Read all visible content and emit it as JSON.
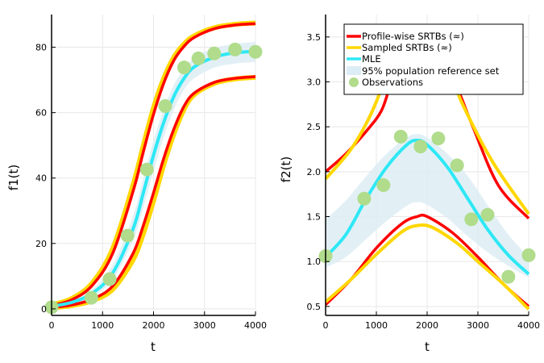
{
  "chart_data": [
    {
      "type": "line",
      "id": "left",
      "xlabel": "t",
      "ylabel": "f1(t)",
      "xlim": [
        0,
        4000
      ],
      "ylim": [
        -2,
        90
      ],
      "xticks": [
        0,
        1000,
        2000,
        3000,
        4000
      ],
      "xtick_labels": [
        "0",
        "1000",
        "2000",
        "3000",
        "4000"
      ],
      "yticks": [
        0,
        20,
        40,
        60,
        80
      ],
      "ytick_labels": [
        "0",
        "20",
        "40",
        "60",
        "80"
      ],
      "grid": true,
      "series": [
        {
          "name": "95% population reference set",
          "kind": "band",
          "x": [
            0,
            400,
            800,
            1200,
            1600,
            1800,
            2000,
            2200,
            2400,
            2600,
            2800,
            3200,
            3600,
            4000
          ],
          "lower": [
            0.6,
            1.5,
            3.8,
            9.0,
            21.0,
            31.0,
            42.0,
            52.5,
            61.0,
            67.0,
            70.5,
            73.8,
            75.0,
            75.5
          ],
          "upper": [
            1.2,
            2.6,
            6.0,
            13.5,
            28.5,
            40.0,
            51.5,
            61.0,
            68.5,
            73.5,
            76.8,
            79.8,
            81.0,
            81.6
          ]
        },
        {
          "name": "Sampled SRTBs (≈) upper",
          "kind": "line",
          "x": [
            0,
            400,
            800,
            1200,
            1600,
            1800,
            2000,
            2200,
            2400,
            2600,
            2800,
            3200,
            3600,
            4000
          ],
          "y": [
            1.2,
            3.2,
            8.0,
            18.5,
            38.0,
            50.0,
            61.5,
            70.5,
            77.0,
            81.0,
            83.5,
            86.0,
            87.0,
            87.4
          ]
        },
        {
          "name": "Sampled SRTBs (≈) lower",
          "kind": "line",
          "x": [
            0,
            400,
            800,
            1200,
            1600,
            1800,
            2000,
            2200,
            2400,
            2600,
            2800,
            3200,
            3600,
            4000
          ],
          "y": [
            0.3,
            1.0,
            2.5,
            6.0,
            15.0,
            23.0,
            33.0,
            44.0,
            53.5,
            61.0,
            65.5,
            69.0,
            70.3,
            70.8
          ]
        },
        {
          "name": "Profile-wise SRTBs (≈) upper",
          "kind": "line",
          "x": [
            0,
            400,
            800,
            1200,
            1600,
            1800,
            2000,
            2200,
            2400,
            2600,
            2800,
            3200,
            3600,
            4000
          ],
          "y": [
            1.0,
            2.8,
            7.2,
            17.0,
            36.0,
            48.0,
            59.5,
            69.0,
            76.0,
            80.3,
            83.0,
            85.7,
            86.8,
            87.2
          ]
        },
        {
          "name": "Profile-wise SRTBs (≈) lower",
          "kind": "line",
          "x": [
            0,
            400,
            800,
            1200,
            1600,
            1800,
            2000,
            2200,
            2400,
            2600,
            2800,
            3200,
            3600,
            4000
          ],
          "y": [
            0.4,
            1.2,
            3.0,
            7.0,
            17.0,
            25.5,
            35.5,
            46.0,
            55.0,
            62.0,
            66.0,
            69.3,
            70.5,
            71.0
          ]
        },
        {
          "name": "MLE",
          "kind": "line",
          "x": [
            0,
            400,
            800,
            1200,
            1600,
            1800,
            2000,
            2200,
            2400,
            2600,
            2800,
            3200,
            3600,
            4000
          ],
          "y": [
            0.8,
            2.0,
            4.8,
            11.0,
            24.5,
            35.5,
            47.0,
            57.0,
            65.0,
            70.5,
            74.0,
            77.0,
            78.3,
            78.7
          ]
        },
        {
          "name": "Observations",
          "kind": "scatter",
          "x": [
            0,
            780,
            1140,
            1490,
            1870,
            2230,
            2600,
            2880,
            3190,
            3600,
            4000
          ],
          "y": [
            0.5,
            3.4,
            9.1,
            22.4,
            42.6,
            62.0,
            73.8,
            76.6,
            78.1,
            79.3,
            78.6
          ]
        }
      ]
    },
    {
      "type": "line",
      "id": "right",
      "xlabel": "t",
      "ylabel": "f2(t)",
      "xlim": [
        0,
        4000
      ],
      "ylim": [
        0.4,
        3.75
      ],
      "xticks": [
        0,
        1000,
        2000,
        3000,
        4000
      ],
      "xtick_labels": [
        "0",
        "1000",
        "2000",
        "3000",
        "4000"
      ],
      "yticks": [
        0.5,
        1.0,
        1.5,
        2.0,
        2.5,
        3.0,
        3.5
      ],
      "ytick_labels": [
        "0.5",
        "1.0",
        "1.5",
        "2.0",
        "2.5",
        "3.0",
        "3.5"
      ],
      "grid": true,
      "legend_position": "top-right",
      "series": [
        {
          "name": "95% population reference set",
          "kind": "band",
          "x": [
            0,
            400,
            800,
            1200,
            1600,
            1800,
            2000,
            2400,
            2800,
            3200,
            3600,
            4000
          ],
          "lower": [
            0.93,
            1.05,
            1.25,
            1.45,
            1.62,
            1.66,
            1.63,
            1.48,
            1.28,
            1.1,
            0.95,
            0.82
          ],
          "upper": [
            1.47,
            1.68,
            1.95,
            2.2,
            2.38,
            2.42,
            2.38,
            2.2,
            1.95,
            1.62,
            1.3,
            1.05
          ]
        },
        {
          "name": "Profile-wise SRTBs (≈) upper",
          "kind": "line",
          "x": [
            0,
            400,
            800,
            1100,
            1300,
            1600,
            1800,
            2000,
            2500,
            2900,
            3400,
            4000
          ],
          "y": [
            2.0,
            2.2,
            2.45,
            2.68,
            3.0,
            3.4,
            3.58,
            3.5,
            3.05,
            2.5,
            1.85,
            1.48
          ]
        },
        {
          "name": "Profile-wise SRTBs (≈) lower",
          "kind": "line",
          "x": [
            0,
            500,
            1000,
            1500,
            1800,
            2000,
            2500,
            3000,
            3500,
            4000
          ],
          "y": [
            0.52,
            0.8,
            1.15,
            1.42,
            1.5,
            1.5,
            1.32,
            1.05,
            0.75,
            0.5
          ]
        },
        {
          "name": "Sampled SRTBs (≈) upper",
          "kind": "line",
          "x": [
            0,
            500,
            900,
            1300,
            1600,
            1800,
            2000,
            2300,
            2700,
            3300,
            4000
          ],
          "y": [
            1.92,
            2.25,
            2.65,
            3.2,
            3.5,
            3.62,
            3.55,
            3.3,
            2.75,
            2.1,
            1.53
          ]
        },
        {
          "name": "Sampled SRTBs (≈) lower",
          "kind": "line",
          "x": [
            0,
            500,
            1000,
            1500,
            1800,
            2100,
            2600,
            3000,
            3500,
            4000
          ],
          "y": [
            0.55,
            0.8,
            1.08,
            1.33,
            1.4,
            1.38,
            1.2,
            1.0,
            0.75,
            0.47
          ]
        },
        {
          "name": "MLE",
          "kind": "line",
          "x": [
            0,
            400,
            800,
            1200,
            1600,
            1800,
            2000,
            2400,
            2800,
            3200,
            3600,
            4000
          ],
          "y": [
            1.05,
            1.3,
            1.7,
            2.05,
            2.3,
            2.35,
            2.3,
            2.05,
            1.7,
            1.35,
            1.07,
            0.86
          ]
        },
        {
          "name": "Observations",
          "kind": "scatter",
          "x": [
            0,
            760,
            1140,
            1480,
            1870,
            2220,
            2590,
            2870,
            3190,
            3600,
            4000
          ],
          "y": [
            1.06,
            1.7,
            1.85,
            2.39,
            2.28,
            2.37,
            2.07,
            1.47,
            1.52,
            0.83,
            1.07
          ]
        }
      ]
    }
  ],
  "legend": {
    "items": [
      {
        "label": "Profile-wise SRTBs (≈)",
        "kind": "line",
        "color": "#ff0000"
      },
      {
        "label": "Sampled SRTBs (≈)",
        "kind": "line",
        "color": "#ffd700"
      },
      {
        "label": "MLE",
        "kind": "line",
        "color": "#2ee8f5"
      },
      {
        "label": "95% population reference set",
        "kind": "band",
        "color": "#ddedf5"
      },
      {
        "label": "Observations",
        "kind": "scatter",
        "color": "#b0dc8c"
      }
    ]
  },
  "colors": {
    "profile": "#ff0000",
    "sampled": "#ffd700",
    "mle": "#2ee8f5",
    "band": "#ddedf5",
    "obs": "#b0dc8c",
    "grid": "#e8e8e8",
    "axis": "#000000"
  }
}
